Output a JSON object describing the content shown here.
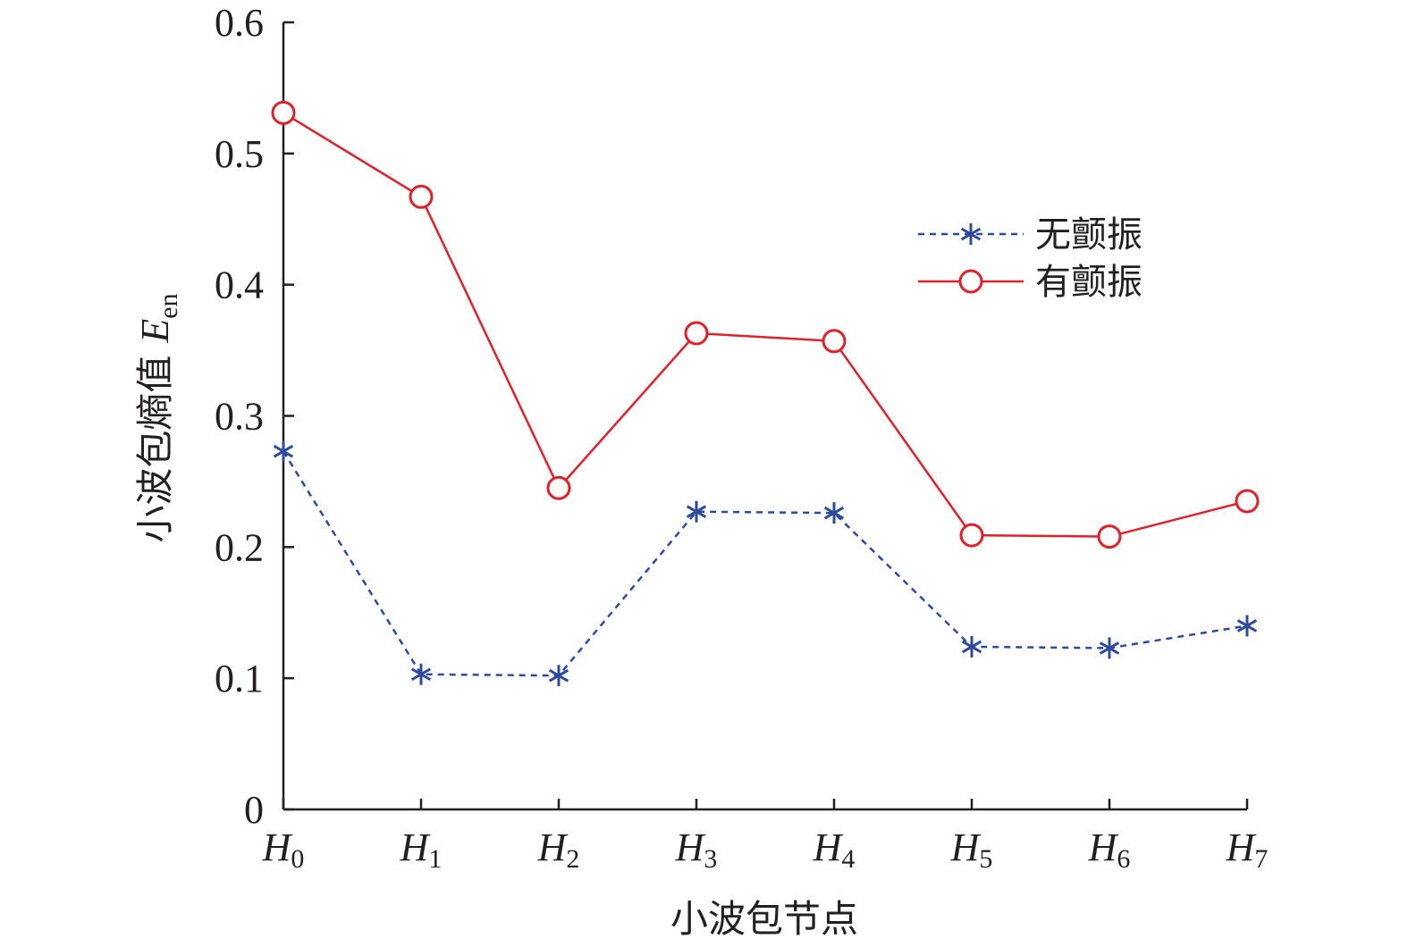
{
  "chart_data": {
    "type": "line",
    "xlabel": "小波包节点",
    "ylabel": "小波包熵值",
    "ylabel_symbol": "E",
    "ylabel_subscript": "en",
    "categories": [
      {
        "base": "H",
        "sub": "0"
      },
      {
        "base": "H",
        "sub": "1"
      },
      {
        "base": "H",
        "sub": "2"
      },
      {
        "base": "H",
        "sub": "3"
      },
      {
        "base": "H",
        "sub": "4"
      },
      {
        "base": "H",
        "sub": "5"
      },
      {
        "base": "H",
        "sub": "6"
      },
      {
        "base": "H",
        "sub": "7"
      }
    ],
    "ylim": [
      0,
      0.6
    ],
    "yticks": [
      "0",
      "0.1",
      "0.2",
      "0.3",
      "0.4",
      "0.5",
      "0.6"
    ],
    "grid": false,
    "legend_position": "top-right",
    "series": [
      {
        "name": "无颤振",
        "color": "#2e4a9e",
        "line_style": "dashed",
        "marker": "asterisk",
        "values": [
          0.273,
          0.103,
          0.102,
          0.227,
          0.226,
          0.124,
          0.123,
          0.14
        ]
      },
      {
        "name": "有颤振",
        "color": "#e0202a",
        "line_style": "solid",
        "marker": "circle",
        "values": [
          0.531,
          0.467,
          0.245,
          0.363,
          0.357,
          0.209,
          0.208,
          0.235
        ]
      }
    ]
  }
}
